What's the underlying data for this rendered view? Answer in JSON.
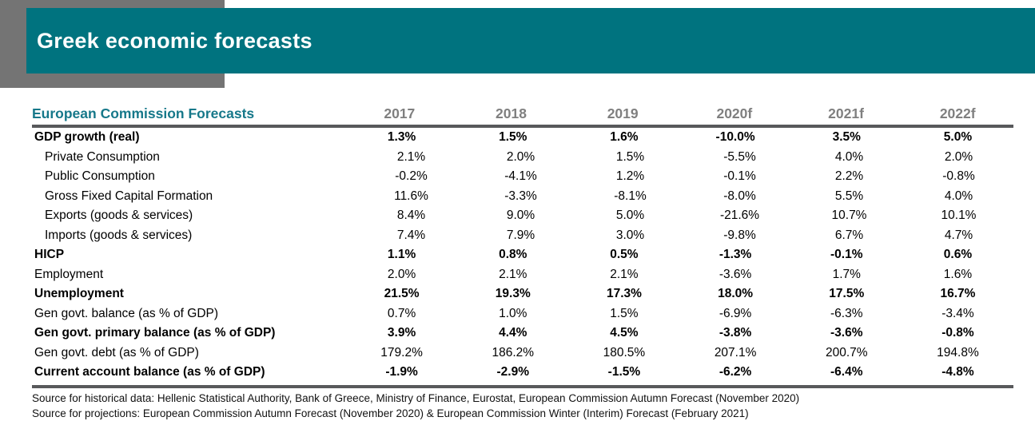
{
  "banner": {
    "title": "Greek economic forecasts"
  },
  "colors": {
    "banner_teal": "#00737F",
    "header_text_teal": "#16788A",
    "gray_block": "#747474",
    "year_header_gray": "#7F7F7F",
    "rule_gray": "#58595B"
  },
  "table": {
    "header_label": "European Commission Forecasts",
    "columns": [
      "2017",
      "2018",
      "2019",
      "2020f",
      "2021f",
      "2022f"
    ],
    "rows": [
      {
        "label": "GDP growth (real)",
        "bold": true,
        "indent": false,
        "values": [
          "1.3%",
          "1.5%",
          "1.6%",
          "-10.0%",
          "3.5%",
          "5.0%"
        ]
      },
      {
        "label": "Private Consumption",
        "bold": false,
        "indent": true,
        "values": [
          "2.1%",
          "2.0%",
          "1.5%",
          "-5.5%",
          "4.0%",
          "2.0%"
        ]
      },
      {
        "label": "Public Consumption",
        "bold": false,
        "indent": true,
        "values": [
          "-0.2%",
          "-4.1%",
          "1.2%",
          "-0.1%",
          "2.2%",
          "-0.8%"
        ]
      },
      {
        "label": "Gross Fixed Capital Formation",
        "bold": false,
        "indent": true,
        "values": [
          "11.6%",
          "-3.3%",
          "-8.1%",
          "-8.0%",
          "5.5%",
          "4.0%"
        ]
      },
      {
        "label": "Exports (goods & services)",
        "bold": false,
        "indent": true,
        "values": [
          "8.4%",
          "9.0%",
          "5.0%",
          "-21.6%",
          "10.7%",
          "10.1%"
        ]
      },
      {
        "label": "Imports (goods & services)",
        "bold": false,
        "indent": true,
        "values": [
          "7.4%",
          "7.9%",
          "3.0%",
          "-9.8%",
          "6.7%",
          "4.7%"
        ]
      },
      {
        "label": "HICP",
        "bold": true,
        "indent": false,
        "values": [
          "1.1%",
          "0.8%",
          "0.5%",
          "-1.3%",
          "-0.1%",
          "0.6%"
        ]
      },
      {
        "label": "Employment",
        "bold": false,
        "indent": false,
        "values": [
          "2.0%",
          "2.1%",
          "2.1%",
          "-3.6%",
          "1.7%",
          "1.6%"
        ]
      },
      {
        "label": "Unemployment",
        "bold": true,
        "indent": false,
        "values": [
          "21.5%",
          "19.3%",
          "17.3%",
          "18.0%",
          "17.5%",
          "16.7%"
        ]
      },
      {
        "label": "Gen govt. balance (as % of GDP)",
        "bold": false,
        "indent": false,
        "values": [
          "0.7%",
          "1.0%",
          "1.5%",
          "-6.9%",
          "-6.3%",
          "-3.4%"
        ]
      },
      {
        "label": "Gen govt. primary balance (as % of GDP)",
        "bold": true,
        "indent": false,
        "values": [
          "3.9%",
          "4.4%",
          "4.5%",
          "-3.8%",
          "-3.6%",
          "-0.8%"
        ]
      },
      {
        "label": "Gen govt. debt (as % of GDP)",
        "bold": false,
        "indent": false,
        "values": [
          "179.2%",
          "186.2%",
          "180.5%",
          "207.1%",
          "200.7%",
          "194.8%"
        ]
      },
      {
        "label": "Current account balance (as % of GDP)",
        "bold": true,
        "indent": false,
        "values": [
          "-1.9%",
          "-2.9%",
          "-1.5%",
          "-6.2%",
          "-6.4%",
          "-4.8%"
        ]
      }
    ]
  },
  "sources": {
    "historical": "Source for historical data: Hellenic Statistical Authority, Bank of Greece, Ministry of Finance, Eurostat, European Commission Autumn Forecast (November 2020)",
    "projections": "Source for projections: European Commission Autumn Forecast (November 2020) & European Commission Winter (Interim) Forecast (February 2021)"
  }
}
